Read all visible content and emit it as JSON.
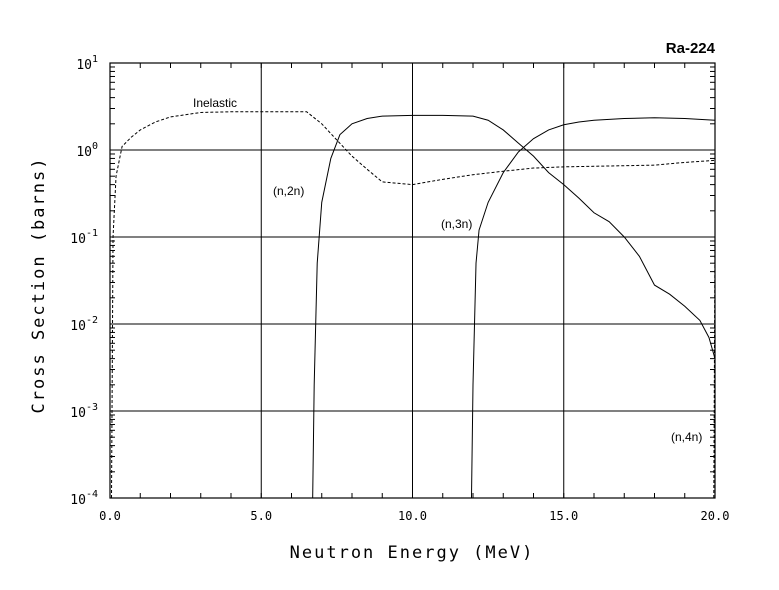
{
  "chart_data": {
    "type": "line",
    "title": "Ra-224",
    "xlabel": "Neutron Energy (MeV)",
    "ylabel": "Cross Section (barns)",
    "xlim": [
      0,
      20
    ],
    "ylim_log10": [
      -4,
      1
    ],
    "y_scale": "log",
    "grid": true,
    "x_ticks": [
      "0.0",
      "5.0",
      "10.0",
      "15.0",
      "20.0"
    ],
    "x_tick_values": [
      0,
      5,
      10,
      15,
      20
    ],
    "y_tick_exponents": [
      -4,
      -3,
      -2,
      -1,
      0,
      1
    ],
    "y_tick_base": "10",
    "y_tick_labels": [
      "-4",
      "-3",
      "-2",
      "-1",
      "0",
      "1"
    ],
    "series": [
      {
        "name": "Inelastic",
        "label": "Inelastic",
        "style": "dashed",
        "x": [
          0.05,
          0.1,
          0.2,
          0.4,
          0.7,
          1.0,
          1.5,
          2.0,
          3.0,
          4.0,
          5.0,
          6.0,
          6.5,
          7.0,
          7.5,
          8.0,
          8.5,
          9.0,
          10.0,
          11.0,
          12.0,
          13.0,
          14.0,
          15.0,
          16.0,
          17.0,
          18.0,
          19.0,
          20.0
        ],
        "y": [
          0.0001,
          0.1,
          0.5,
          1.1,
          1.4,
          1.7,
          2.1,
          2.4,
          2.7,
          2.75,
          2.75,
          2.75,
          2.75,
          2.0,
          1.3,
          0.85,
          0.6,
          0.43,
          0.4,
          0.46,
          0.52,
          0.57,
          0.62,
          0.64,
          0.65,
          0.66,
          0.67,
          0.72,
          0.76
        ]
      },
      {
        "name": "(n,2n)",
        "label": "(n,2n)",
        "style": "solid",
        "x": [
          6.7,
          6.75,
          6.85,
          7.0,
          7.3,
          7.6,
          8.0,
          8.5,
          9.0,
          10.0,
          11.0,
          12.0,
          12.5,
          13.0,
          13.5,
          14.0,
          14.5,
          15.0,
          15.5,
          16.0,
          16.5,
          17.0,
          17.5,
          18.0,
          18.5,
          19.0,
          19.5,
          19.8,
          20.0
        ],
        "y": [
          0.0001,
          0.002,
          0.05,
          0.25,
          0.8,
          1.5,
          2.0,
          2.3,
          2.45,
          2.5,
          2.5,
          2.45,
          2.2,
          1.7,
          1.2,
          0.85,
          0.55,
          0.4,
          0.28,
          0.19,
          0.15,
          0.1,
          0.06,
          0.028,
          0.022,
          0.016,
          0.011,
          0.007,
          0.004
        ]
      },
      {
        "name": "(n,3n)",
        "label": "(n,3n)",
        "style": "solid",
        "x": [
          11.95,
          12.0,
          12.1,
          12.2,
          12.5,
          13.0,
          13.5,
          14.0,
          14.5,
          15.0,
          15.5,
          16.0,
          17.0,
          18.0,
          19.0,
          20.0
        ],
        "y": [
          0.0001,
          0.002,
          0.05,
          0.12,
          0.25,
          0.55,
          0.95,
          1.35,
          1.7,
          1.95,
          2.1,
          2.2,
          2.3,
          2.35,
          2.3,
          2.2
        ]
      },
      {
        "name": "(n,4n)",
        "label": "(n,4n)",
        "style": "dashed",
        "x": [
          19.96,
          20.0
        ],
        "y": [
          0.0001,
          0.1
        ]
      }
    ]
  }
}
